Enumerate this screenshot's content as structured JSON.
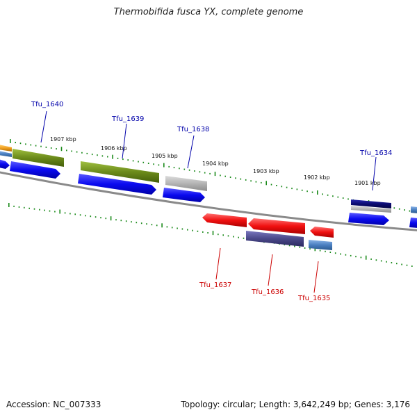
{
  "title": "Thermobifida fusca YX, complete genome",
  "footer": {
    "accession": "Accession: NC_007333",
    "summary": "Topology: circular; Length: 3,642,249 bp; Genes: 3,176"
  },
  "kbp_labels": [
    {
      "text": "1907 kbp"
    },
    {
      "text": "1906 kbp"
    },
    {
      "text": "1905 kbp"
    },
    {
      "text": "1904 kbp"
    },
    {
      "text": "1903 kbp"
    },
    {
      "text": "1902 kbp"
    },
    {
      "text": "1901 kbp"
    }
  ],
  "gene_labels": [
    {
      "text": "Tfu_1640",
      "strand": "forward",
      "color": "#0000aa"
    },
    {
      "text": "Tfu_1639",
      "strand": "forward",
      "color": "#0000aa"
    },
    {
      "text": "Tfu_1638",
      "strand": "forward",
      "color": "#0000aa"
    },
    {
      "text": "Tfu_1634",
      "strand": "forward",
      "color": "#0000aa"
    },
    {
      "text": "Tfu_1637",
      "strand": "reverse",
      "color": "#cc0000"
    },
    {
      "text": "Tfu_1636",
      "strand": "reverse",
      "color": "#cc0000"
    },
    {
      "text": "Tfu_1635",
      "strand": "reverse",
      "color": "#cc0000"
    }
  ],
  "colors": {
    "cds_blue": "#1010ee",
    "olive": "#6b8a1a",
    "grey": "#b0b0b0",
    "navy": "#0a0a70",
    "red": "#ee1010",
    "purple": "#4a4888",
    "steel": "#4a7fc0",
    "orange": "#f0a020",
    "tick_green": "#1a8a1a",
    "backbone": "#8a8a8a"
  }
}
